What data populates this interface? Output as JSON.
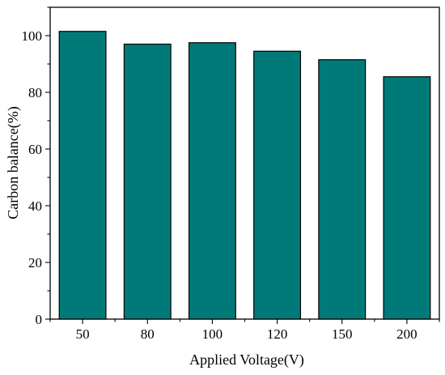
{
  "chart_data": {
    "type": "bar",
    "title": "",
    "xlabel": "Applied Voltage(V)",
    "ylabel": "Carbon balance(%)",
    "categories": [
      "50",
      "80",
      "100",
      "120",
      "150",
      "200"
    ],
    "values": [
      101.5,
      97.0,
      97.5,
      94.5,
      91.5,
      85.5
    ],
    "ylim": [
      0,
      110
    ],
    "yticks": [
      0,
      20,
      40,
      60,
      80,
      100
    ],
    "grid": false,
    "legend": "none",
    "bar_color": "#007a78"
  }
}
